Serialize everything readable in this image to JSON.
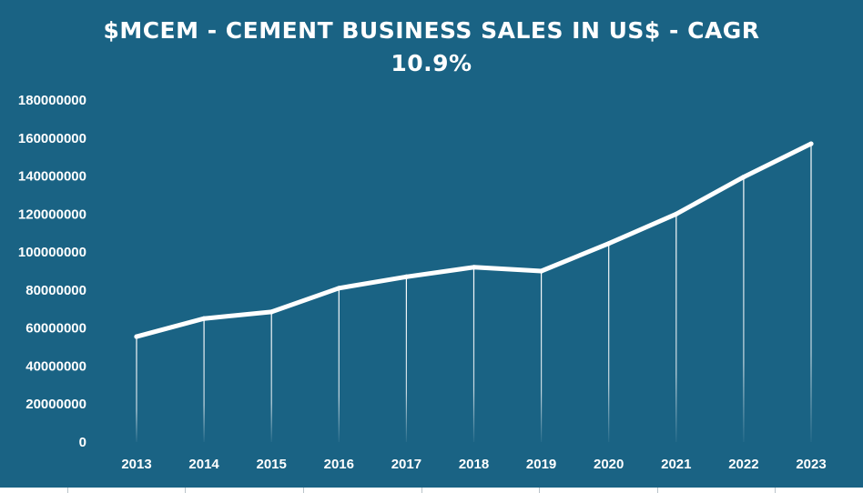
{
  "chart_data": {
    "type": "line",
    "title": "$MCEM - CEMENT BUSINESS SALES IN US$ - CAGR",
    "subtitle": "10.9%",
    "xlabel": "",
    "ylabel": "",
    "categories": [
      "2013",
      "2014",
      "2015",
      "2016",
      "2017",
      "2018",
      "2019",
      "2020",
      "2021",
      "2022",
      "2023"
    ],
    "series": [
      {
        "values": [
          55500000,
          65000000,
          68500000,
          81000000,
          87000000,
          92000000,
          90000000,
          104500000,
          120000000,
          139500000,
          157000000
        ]
      }
    ],
    "ylim": [
      0,
      180000000
    ],
    "yticks": [
      "0",
      "20000000",
      "40000000",
      "60000000",
      "80000000",
      "100000000",
      "120000000",
      "140000000",
      "160000000",
      "180000000"
    ],
    "grid": false,
    "drop_lines": true,
    "legend": "none",
    "colors": {
      "background": "#1a6384",
      "line": "#ffffff",
      "text": "#ffffff"
    }
  }
}
